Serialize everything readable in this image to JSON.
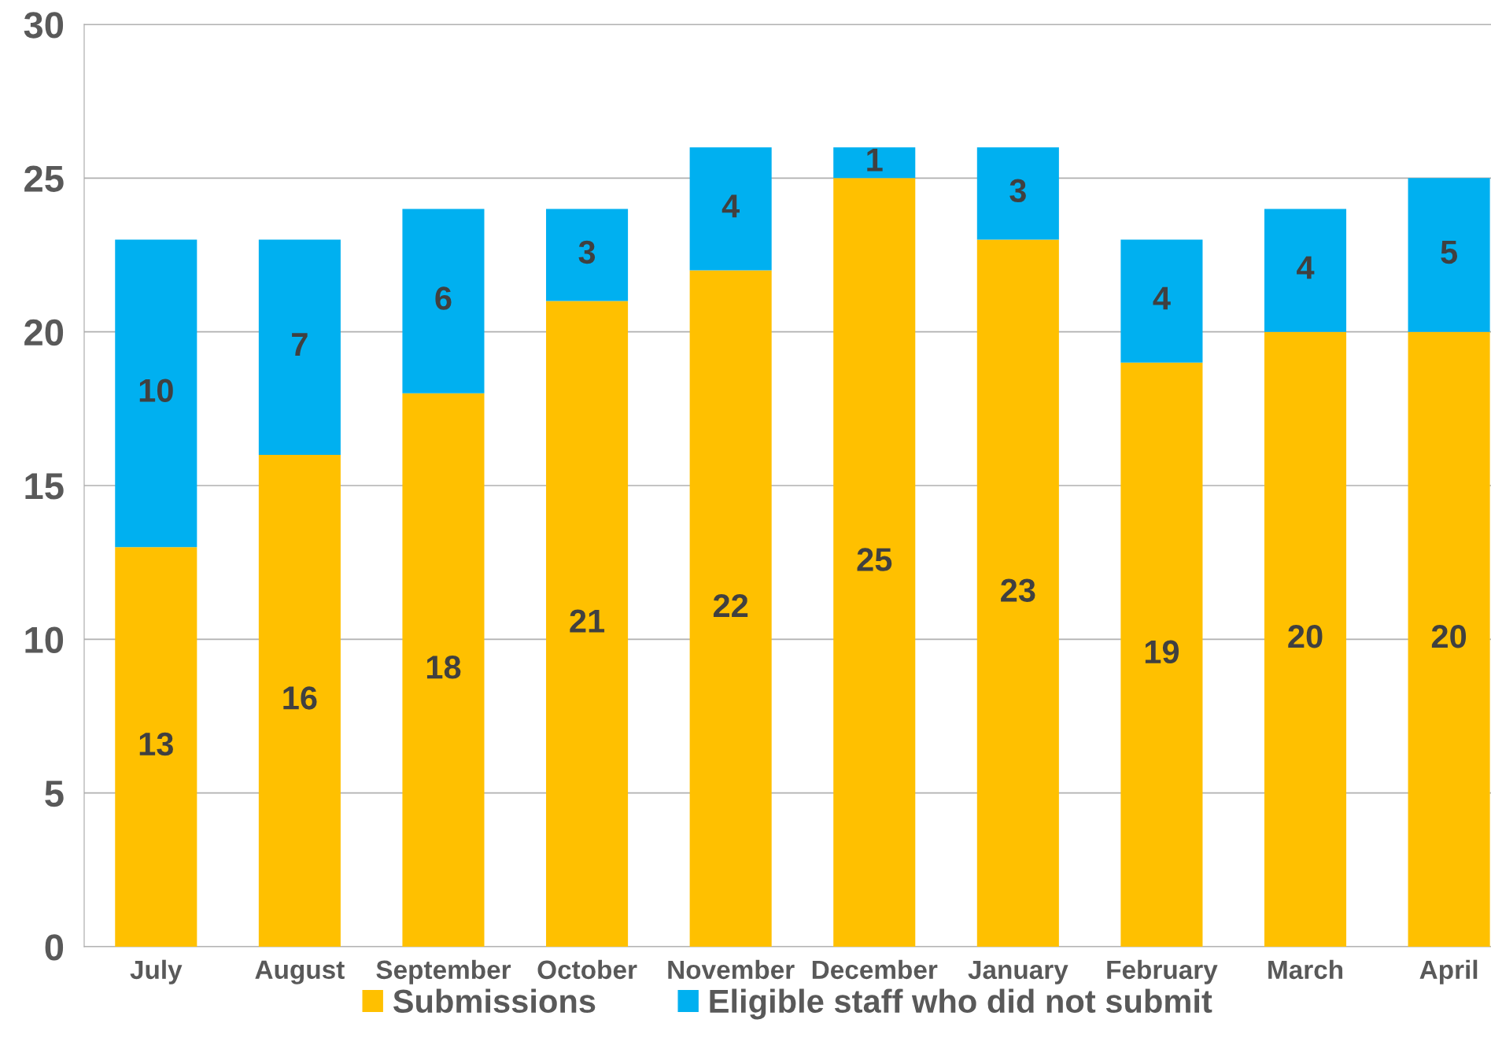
{
  "chart_data": {
    "type": "bar",
    "stacked": true,
    "categories": [
      "July",
      "August",
      "September",
      "October",
      "November",
      "December",
      "January",
      "February",
      "March",
      "April"
    ],
    "series": [
      {
        "name": "Submissions",
        "color": "#ffc000",
        "values": [
          13,
          16,
          18,
          21,
          22,
          25,
          23,
          19,
          20,
          20
        ]
      },
      {
        "name": "Eligible staff who did not submit",
        "color": "#00b0f0",
        "values": [
          10,
          7,
          6,
          3,
          4,
          1,
          3,
          4,
          4,
          5
        ]
      }
    ],
    "ylim": [
      0,
      30
    ],
    "yticks": [
      0,
      5,
      10,
      15,
      20,
      25,
      30
    ],
    "grid": "y",
    "legend": "bottom",
    "data_labels": true
  }
}
